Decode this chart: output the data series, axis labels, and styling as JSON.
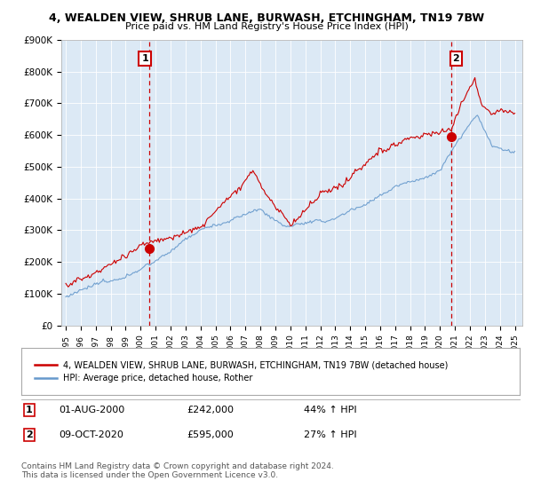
{
  "title": "4, WEALDEN VIEW, SHRUB LANE, BURWASH, ETCHINGHAM, TN19 7BW",
  "subtitle": "Price paid vs. HM Land Registry's House Price Index (HPI)",
  "legend_label_red": "4, WEALDEN VIEW, SHRUB LANE, BURWASH, ETCHINGHAM, TN19 7BW (detached house)",
  "legend_label_blue": "HPI: Average price, detached house, Rother",
  "annotation1_date": "01-AUG-2000",
  "annotation1_price": "£242,000",
  "annotation1_hpi": "44% ↑ HPI",
  "annotation2_date": "09-OCT-2020",
  "annotation2_price": "£595,000",
  "annotation2_hpi": "27% ↑ HPI",
  "footnote": "Contains HM Land Registry data © Crown copyright and database right 2024.\nThis data is licensed under the Open Government Licence v3.0.",
  "red_color": "#cc0000",
  "blue_color": "#6699cc",
  "chart_bg": "#dce9f5",
  "background_color": "#ffffff",
  "grid_color": "#ffffff",
  "ylim": [
    0,
    900000
  ],
  "yticks": [
    0,
    100000,
    200000,
    300000,
    400000,
    500000,
    600000,
    700000,
    800000,
    900000
  ],
  "ytick_labels": [
    "£0",
    "£100K",
    "£200K",
    "£300K",
    "£400K",
    "£500K",
    "£600K",
    "£700K",
    "£800K",
    "£900K"
  ],
  "purchase1_x": 2000.583,
  "purchase1_y": 242000,
  "purchase2_x": 2020.772,
  "purchase2_y": 595000,
  "xmin": 1994.7,
  "xmax": 2025.5
}
